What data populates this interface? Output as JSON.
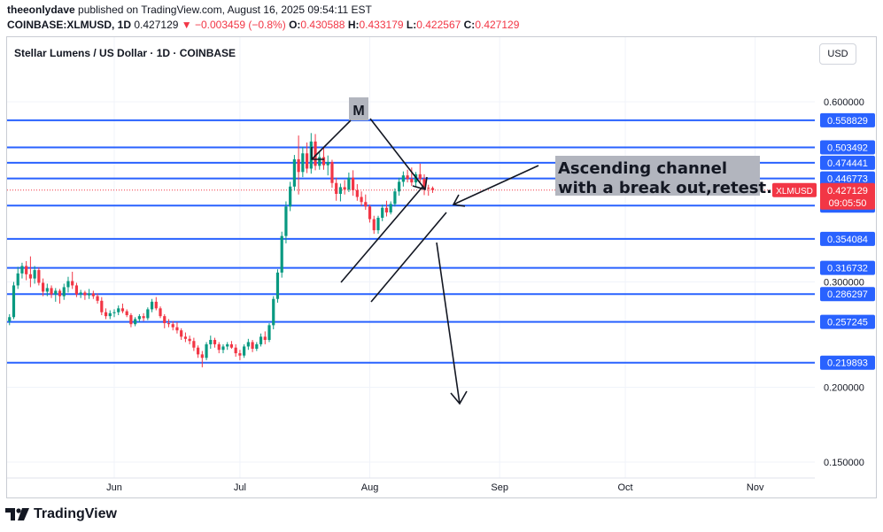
{
  "header": {
    "publisher": "theeonlydave",
    "published_text": "published on TradingView.com, August 16, 2025 09:54:11 EST",
    "symbol_interval": "COINBASE:XLMUSD, 1D",
    "last": "0.427129",
    "change": "▼ −0.003459 (−0.8%)",
    "o_label": "O:",
    "o_value": "0.430588",
    "h_label": "H:",
    "h_value": "0.433179",
    "l_label": "L:",
    "l_value": "0.422567",
    "c_label": "C:",
    "c_value": "0.427129"
  },
  "chart_title": "Stellar Lumens / US Dollar · 1D · COINBASE",
  "currency_button": "USD",
  "brand": "TradingView",
  "colors": {
    "up": "#089981",
    "down": "#f23645",
    "level": "#2962ff",
    "annotation_box": "#b2b5be",
    "price_tag": "#f23645"
  },
  "chart_data": {
    "type": "candlestick",
    "symbol_tag": "XLMUSD",
    "current_price": "0.427129",
    "countdown": "09:05:50",
    "y_axis_ticks": [
      "0.600000",
      "0.300000",
      "0.200000",
      "0.150000"
    ],
    "x_axis_ticks": [
      "Jun",
      "Jul",
      "Aug",
      "Sep",
      "Oct",
      "Nov"
    ],
    "ylim": [
      0.128,
      0.72
    ],
    "y_scale": "log",
    "horizontal_levels": [
      "0.558829",
      "0.503492",
      "0.474441",
      "0.446773",
      "0.402503",
      "0.354084",
      "0.316732",
      "0.286297",
      "0.257245",
      "0.219893"
    ],
    "annotations": [
      "M",
      "Ascending channel with a break out,retest."
    ],
    "candles": [
      {
        "d": "2025-05-07",
        "o": 0.258,
        "h": 0.265,
        "l": 0.254,
        "c": 0.262
      },
      {
        "d": "2025-05-08",
        "o": 0.262,
        "h": 0.3,
        "l": 0.26,
        "c": 0.296
      },
      {
        "d": "2025-05-09",
        "o": 0.296,
        "h": 0.318,
        "l": 0.292,
        "c": 0.31
      },
      {
        "d": "2025-05-10",
        "o": 0.31,
        "h": 0.323,
        "l": 0.304,
        "c": 0.319
      },
      {
        "d": "2025-05-11",
        "o": 0.319,
        "h": 0.325,
        "l": 0.302,
        "c": 0.309
      },
      {
        "d": "2025-05-12",
        "o": 0.309,
        "h": 0.331,
        "l": 0.294,
        "c": 0.304
      },
      {
        "d": "2025-05-13",
        "o": 0.304,
        "h": 0.319,
        "l": 0.298,
        "c": 0.314
      },
      {
        "d": "2025-05-14",
        "o": 0.314,
        "h": 0.317,
        "l": 0.296,
        "c": 0.299
      },
      {
        "d": "2025-05-15",
        "o": 0.299,
        "h": 0.304,
        "l": 0.284,
        "c": 0.289
      },
      {
        "d": "2025-05-16",
        "o": 0.289,
        "h": 0.298,
        "l": 0.284,
        "c": 0.293
      },
      {
        "d": "2025-05-17",
        "o": 0.293,
        "h": 0.296,
        "l": 0.282,
        "c": 0.286
      },
      {
        "d": "2025-05-18",
        "o": 0.286,
        "h": 0.293,
        "l": 0.278,
        "c": 0.29
      },
      {
        "d": "2025-05-19",
        "o": 0.29,
        "h": 0.292,
        "l": 0.276,
        "c": 0.284
      },
      {
        "d": "2025-05-20",
        "o": 0.284,
        "h": 0.298,
        "l": 0.28,
        "c": 0.294
      },
      {
        "d": "2025-05-21",
        "o": 0.294,
        "h": 0.306,
        "l": 0.288,
        "c": 0.301
      },
      {
        "d": "2025-05-22",
        "o": 0.301,
        "h": 0.312,
        "l": 0.292,
        "c": 0.296
      },
      {
        "d": "2025-05-23",
        "o": 0.296,
        "h": 0.299,
        "l": 0.283,
        "c": 0.286
      },
      {
        "d": "2025-05-24",
        "o": 0.286,
        "h": 0.291,
        "l": 0.282,
        "c": 0.288
      },
      {
        "d": "2025-05-25",
        "o": 0.288,
        "h": 0.29,
        "l": 0.28,
        "c": 0.285
      },
      {
        "d": "2025-05-26",
        "o": 0.285,
        "h": 0.292,
        "l": 0.281,
        "c": 0.287
      },
      {
        "d": "2025-05-27",
        "o": 0.287,
        "h": 0.29,
        "l": 0.281,
        "c": 0.284
      },
      {
        "d": "2025-05-28",
        "o": 0.284,
        "h": 0.287,
        "l": 0.276,
        "c": 0.279
      },
      {
        "d": "2025-05-29",
        "o": 0.279,
        "h": 0.283,
        "l": 0.264,
        "c": 0.267
      },
      {
        "d": "2025-05-30",
        "o": 0.267,
        "h": 0.271,
        "l": 0.26,
        "c": 0.263
      },
      {
        "d": "2025-05-31",
        "o": 0.263,
        "h": 0.269,
        "l": 0.26,
        "c": 0.266
      },
      {
        "d": "2025-06-01",
        "o": 0.266,
        "h": 0.27,
        "l": 0.262,
        "c": 0.267
      },
      {
        "d": "2025-06-02",
        "o": 0.267,
        "h": 0.274,
        "l": 0.264,
        "c": 0.271
      },
      {
        "d": "2025-06-03",
        "o": 0.271,
        "h": 0.276,
        "l": 0.266,
        "c": 0.268
      },
      {
        "d": "2025-06-04",
        "o": 0.268,
        "h": 0.27,
        "l": 0.262,
        "c": 0.264
      },
      {
        "d": "2025-06-05",
        "o": 0.264,
        "h": 0.266,
        "l": 0.252,
        "c": 0.255
      },
      {
        "d": "2025-06-06",
        "o": 0.255,
        "h": 0.262,
        "l": 0.253,
        "c": 0.26
      },
      {
        "d": "2025-06-07",
        "o": 0.26,
        "h": 0.265,
        "l": 0.257,
        "c": 0.263
      },
      {
        "d": "2025-06-08",
        "o": 0.263,
        "h": 0.266,
        "l": 0.258,
        "c": 0.261
      },
      {
        "d": "2025-06-09",
        "o": 0.261,
        "h": 0.272,
        "l": 0.259,
        "c": 0.27
      },
      {
        "d": "2025-06-10",
        "o": 0.27,
        "h": 0.281,
        "l": 0.267,
        "c": 0.278
      },
      {
        "d": "2025-06-11",
        "o": 0.278,
        "h": 0.283,
        "l": 0.269,
        "c": 0.271
      },
      {
        "d": "2025-06-12",
        "o": 0.271,
        "h": 0.273,
        "l": 0.261,
        "c": 0.263
      },
      {
        "d": "2025-06-13",
        "o": 0.263,
        "h": 0.265,
        "l": 0.251,
        "c": 0.256
      },
      {
        "d": "2025-06-14",
        "o": 0.256,
        "h": 0.26,
        "l": 0.252,
        "c": 0.255
      },
      {
        "d": "2025-06-15",
        "o": 0.255,
        "h": 0.258,
        "l": 0.249,
        "c": 0.252
      },
      {
        "d": "2025-06-16",
        "o": 0.252,
        "h": 0.257,
        "l": 0.246,
        "c": 0.249
      },
      {
        "d": "2025-06-17",
        "o": 0.249,
        "h": 0.251,
        "l": 0.24,
        "c": 0.243
      },
      {
        "d": "2025-06-18",
        "o": 0.243,
        "h": 0.247,
        "l": 0.238,
        "c": 0.241
      },
      {
        "d": "2025-06-19",
        "o": 0.241,
        "h": 0.244,
        "l": 0.236,
        "c": 0.239
      },
      {
        "d": "2025-06-20",
        "o": 0.239,
        "h": 0.242,
        "l": 0.23,
        "c": 0.233
      },
      {
        "d": "2025-06-21",
        "o": 0.233,
        "h": 0.235,
        "l": 0.224,
        "c": 0.227
      },
      {
        "d": "2025-06-22",
        "o": 0.227,
        "h": 0.23,
        "l": 0.216,
        "c": 0.224
      },
      {
        "d": "2025-06-23",
        "o": 0.224,
        "h": 0.238,
        "l": 0.222,
        "c": 0.236
      },
      {
        "d": "2025-06-24",
        "o": 0.236,
        "h": 0.244,
        "l": 0.232,
        "c": 0.24
      },
      {
        "d": "2025-06-25",
        "o": 0.24,
        "h": 0.242,
        "l": 0.233,
        "c": 0.236
      },
      {
        "d": "2025-06-26",
        "o": 0.236,
        "h": 0.238,
        "l": 0.228,
        "c": 0.231
      },
      {
        "d": "2025-06-27",
        "o": 0.231,
        "h": 0.236,
        "l": 0.228,
        "c": 0.234
      },
      {
        "d": "2025-06-28",
        "o": 0.234,
        "h": 0.238,
        "l": 0.231,
        "c": 0.236
      },
      {
        "d": "2025-06-29",
        "o": 0.236,
        "h": 0.239,
        "l": 0.232,
        "c": 0.233
      },
      {
        "d": "2025-06-30",
        "o": 0.233,
        "h": 0.236,
        "l": 0.225,
        "c": 0.228
      },
      {
        "d": "2025-07-01",
        "o": 0.228,
        "h": 0.231,
        "l": 0.222,
        "c": 0.226
      },
      {
        "d": "2025-07-02",
        "o": 0.226,
        "h": 0.236,
        "l": 0.224,
        "c": 0.234
      },
      {
        "d": "2025-07-03",
        "o": 0.234,
        "h": 0.241,
        "l": 0.231,
        "c": 0.238
      },
      {
        "d": "2025-07-04",
        "o": 0.238,
        "h": 0.24,
        "l": 0.229,
        "c": 0.232
      },
      {
        "d": "2025-07-05",
        "o": 0.232,
        "h": 0.238,
        "l": 0.23,
        "c": 0.236
      },
      {
        "d": "2025-07-06",
        "o": 0.236,
        "h": 0.246,
        "l": 0.234,
        "c": 0.243
      },
      {
        "d": "2025-07-07",
        "o": 0.243,
        "h": 0.248,
        "l": 0.236,
        "c": 0.24
      },
      {
        "d": "2025-07-08",
        "o": 0.24,
        "h": 0.256,
        "l": 0.238,
        "c": 0.254
      },
      {
        "d": "2025-07-09",
        "o": 0.254,
        "h": 0.284,
        "l": 0.25,
        "c": 0.281
      },
      {
        "d": "2025-07-10",
        "o": 0.281,
        "h": 0.315,
        "l": 0.277,
        "c": 0.311
      },
      {
        "d": "2025-07-11",
        "o": 0.311,
        "h": 0.364,
        "l": 0.305,
        "c": 0.358
      },
      {
        "d": "2025-07-12",
        "o": 0.358,
        "h": 0.409,
        "l": 0.348,
        "c": 0.401
      },
      {
        "d": "2025-07-13",
        "o": 0.401,
        "h": 0.441,
        "l": 0.394,
        "c": 0.433
      },
      {
        "d": "2025-07-14",
        "o": 0.433,
        "h": 0.489,
        "l": 0.426,
        "c": 0.481
      },
      {
        "d": "2025-07-15",
        "o": 0.481,
        "h": 0.527,
        "l": 0.42,
        "c": 0.458
      },
      {
        "d": "2025-07-16",
        "o": 0.458,
        "h": 0.505,
        "l": 0.449,
        "c": 0.492
      },
      {
        "d": "2025-07-17",
        "o": 0.492,
        "h": 0.513,
        "l": 0.456,
        "c": 0.464
      },
      {
        "d": "2025-07-18",
        "o": 0.464,
        "h": 0.532,
        "l": 0.455,
        "c": 0.515
      },
      {
        "d": "2025-07-19",
        "o": 0.515,
        "h": 0.53,
        "l": 0.461,
        "c": 0.469
      },
      {
        "d": "2025-07-20",
        "o": 0.469,
        "h": 0.496,
        "l": 0.462,
        "c": 0.485
      },
      {
        "d": "2025-07-21",
        "o": 0.485,
        "h": 0.505,
        "l": 0.462,
        "c": 0.47
      },
      {
        "d": "2025-07-22",
        "o": 0.47,
        "h": 0.488,
        "l": 0.452,
        "c": 0.476
      },
      {
        "d": "2025-07-23",
        "o": 0.476,
        "h": 0.48,
        "l": 0.431,
        "c": 0.439
      },
      {
        "d": "2025-07-24",
        "o": 0.439,
        "h": 0.448,
        "l": 0.41,
        "c": 0.421
      },
      {
        "d": "2025-07-25",
        "o": 0.421,
        "h": 0.438,
        "l": 0.409,
        "c": 0.432
      },
      {
        "d": "2025-07-26",
        "o": 0.432,
        "h": 0.444,
        "l": 0.42,
        "c": 0.428
      },
      {
        "d": "2025-07-27",
        "o": 0.428,
        "h": 0.457,
        "l": 0.424,
        "c": 0.448
      },
      {
        "d": "2025-07-28",
        "o": 0.448,
        "h": 0.461,
        "l": 0.418,
        "c": 0.427
      },
      {
        "d": "2025-07-29",
        "o": 0.427,
        "h": 0.437,
        "l": 0.41,
        "c": 0.416
      },
      {
        "d": "2025-07-30",
        "o": 0.416,
        "h": 0.425,
        "l": 0.402,
        "c": 0.408
      },
      {
        "d": "2025-07-31",
        "o": 0.408,
        "h": 0.42,
        "l": 0.396,
        "c": 0.401
      },
      {
        "d": "2025-08-01",
        "o": 0.401,
        "h": 0.404,
        "l": 0.377,
        "c": 0.382
      },
      {
        "d": "2025-08-02",
        "o": 0.382,
        "h": 0.387,
        "l": 0.361,
        "c": 0.366
      },
      {
        "d": "2025-08-03",
        "o": 0.366,
        "h": 0.387,
        "l": 0.361,
        "c": 0.384
      },
      {
        "d": "2025-08-04",
        "o": 0.384,
        "h": 0.404,
        "l": 0.379,
        "c": 0.399
      },
      {
        "d": "2025-08-05",
        "o": 0.399,
        "h": 0.41,
        "l": 0.386,
        "c": 0.392
      },
      {
        "d": "2025-08-06",
        "o": 0.392,
        "h": 0.409,
        "l": 0.389,
        "c": 0.405
      },
      {
        "d": "2025-08-07",
        "o": 0.405,
        "h": 0.43,
        "l": 0.401,
        "c": 0.425
      },
      {
        "d": "2025-08-08",
        "o": 0.425,
        "h": 0.448,
        "l": 0.418,
        "c": 0.441
      },
      {
        "d": "2025-08-09",
        "o": 0.441,
        "h": 0.459,
        "l": 0.433,
        "c": 0.452
      },
      {
        "d": "2025-08-10",
        "o": 0.452,
        "h": 0.462,
        "l": 0.44,
        "c": 0.446
      },
      {
        "d": "2025-08-11",
        "o": 0.446,
        "h": 0.466,
        "l": 0.434,
        "c": 0.44
      },
      {
        "d": "2025-08-12",
        "o": 0.44,
        "h": 0.458,
        "l": 0.432,
        "c": 0.454
      },
      {
        "d": "2025-08-13",
        "o": 0.454,
        "h": 0.473,
        "l": 0.44,
        "c": 0.446
      },
      {
        "d": "2025-08-14",
        "o": 0.446,
        "h": 0.454,
        "l": 0.419,
        "c": 0.431
      },
      {
        "d": "2025-08-15",
        "o": 0.431,
        "h": 0.436,
        "l": 0.418,
        "c": 0.43
      },
      {
        "d": "2025-08-16",
        "o": 0.430588,
        "h": 0.433179,
        "l": 0.422567,
        "c": 0.427129
      }
    ]
  }
}
